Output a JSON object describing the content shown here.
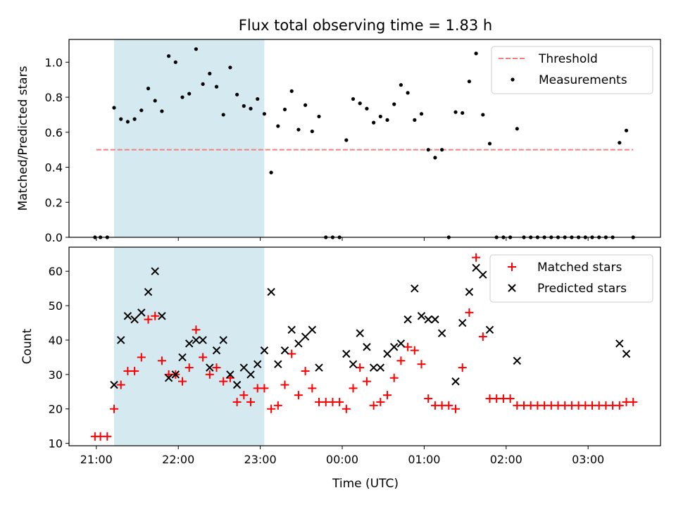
{
  "figure": {
    "title": "Flux total observing time = 1.83 h",
    "xlabel": "Time (UTC)"
  },
  "chart_data": [
    {
      "type": "scatter",
      "ylabel": "Matched/Predicted stars",
      "ylim": [
        0,
        1.13
      ],
      "xlim": [
        "20:40",
        "23:58+03:53"
      ],
      "y_ticks": [
        "0.0",
        "0.2",
        "0.4",
        "0.6",
        "0.8",
        "1.0"
      ],
      "shaded_region": {
        "from": "21:13",
        "to": "23:03",
        "color": "#d4eaf0"
      },
      "legend": {
        "placement": "top-right",
        "entries": [
          {
            "label": "Threshold",
            "marker": "dashed-line",
            "color": "#f08080"
          },
          {
            "label": "Measurements",
            "marker": "dot",
            "color": "#000000"
          }
        ]
      },
      "series": [
        {
          "name": "Threshold",
          "kind": "hline",
          "y": 0.5,
          "x_range": [
            "21:00",
            "03:33"
          ],
          "color": "#f08080"
        },
        {
          "name": "Measurements",
          "kind": "points",
          "color": "#000000",
          "points": [
            [
              "20:59",
              0
            ],
            [
              "21:03",
              0
            ],
            [
              "21:08",
              0
            ],
            [
              "21:13",
              0.74
            ],
            [
              "21:18",
              0.675
            ],
            [
              "21:23",
              0.66
            ],
            [
              "21:28",
              0.675
            ],
            [
              "21:33",
              0.725
            ],
            [
              "21:38",
              0.85
            ],
            [
              "21:43",
              0.78
            ],
            [
              "21:48",
              0.72
            ],
            [
              "21:53",
              1.035
            ],
            [
              "21:58",
              1.0
            ],
            [
              "22:03",
              0.8
            ],
            [
              "22:08",
              0.82
            ],
            [
              "22:13",
              1.075
            ],
            [
              "22:18",
              0.875
            ],
            [
              "22:23",
              0.935
            ],
            [
              "22:28",
              0.86
            ],
            [
              "22:33",
              0.7
            ],
            [
              "22:38",
              0.97
            ],
            [
              "22:43",
              0.815
            ],
            [
              "22:48",
              0.75
            ],
            [
              "22:53",
              0.735
            ],
            [
              "22:58",
              0.79
            ],
            [
              "23:03",
              0.705
            ],
            [
              "23:08",
              0.37
            ],
            [
              "23:13",
              0.635
            ],
            [
              "23:18",
              0.73
            ],
            [
              "23:23",
              0.835
            ],
            [
              "23:28",
              0.615
            ],
            [
              "23:33",
              0.755
            ],
            [
              "23:38",
              0.605
            ],
            [
              "23:43",
              0.69
            ],
            [
              "23:48",
              0
            ],
            [
              "23:53",
              0
            ],
            [
              "23:58",
              0
            ],
            [
              "00:03",
              0.555
            ],
            [
              "00:08",
              0.79
            ],
            [
              "00:13",
              0.765
            ],
            [
              "00:18",
              0.735
            ],
            [
              "00:23",
              0.655
            ],
            [
              "00:28",
              0.69
            ],
            [
              "00:33",
              0.67
            ],
            [
              "00:38",
              0.76
            ],
            [
              "00:43",
              0.87
            ],
            [
              "00:48",
              0.825
            ],
            [
              "00:53",
              0.67
            ],
            [
              "00:58",
              0.705
            ],
            [
              "01:03",
              0.5
            ],
            [
              "01:08",
              0.455
            ],
            [
              "01:13",
              0.5
            ],
            [
              "01:18",
              0
            ],
            [
              "01:23",
              0.715
            ],
            [
              "01:28",
              0.71
            ],
            [
              "01:33",
              0.89
            ],
            [
              "01:38",
              1.05
            ],
            [
              "01:43",
              0.7
            ],
            [
              "01:48",
              0.535
            ],
            [
              "01:53",
              0
            ],
            [
              "01:58",
              0
            ],
            [
              "02:03",
              0
            ],
            [
              "02:08",
              0.62
            ],
            [
              "02:13",
              0
            ],
            [
              "02:18",
              0
            ],
            [
              "02:23",
              0
            ],
            [
              "02:28",
              0
            ],
            [
              "02:33",
              0
            ],
            [
              "02:38",
              0
            ],
            [
              "02:43",
              0
            ],
            [
              "02:48",
              0
            ],
            [
              "02:53",
              0
            ],
            [
              "02:58",
              0
            ],
            [
              "03:03",
              0
            ],
            [
              "03:08",
              0
            ],
            [
              "03:13",
              0
            ],
            [
              "03:18",
              0
            ],
            [
              "03:23",
              0.54
            ],
            [
              "03:28",
              0.61
            ],
            [
              "03:33",
              0
            ]
          ]
        }
      ]
    },
    {
      "type": "scatter",
      "ylabel": "Count",
      "ylim": [
        9.3,
        67
      ],
      "y_ticks": [
        "10",
        "20",
        "30",
        "40",
        "50",
        "60"
      ],
      "x_ticks": [
        "21:00",
        "22:00",
        "23:00",
        "00:00",
        "01:00",
        "02:00",
        "03:00"
      ],
      "shaded_region": {
        "from": "21:13",
        "to": "23:03",
        "color": "#d4eaf0"
      },
      "legend": {
        "placement": "top-right",
        "entries": [
          {
            "label": "Matched stars",
            "marker": "plus",
            "color": "#ff0000"
          },
          {
            "label": "Predicted stars",
            "marker": "x",
            "color": "#000000"
          }
        ]
      },
      "series": [
        {
          "name": "Matched stars",
          "kind": "points",
          "marker": "plus",
          "color": "#ff0000",
          "points": [
            [
              "20:59",
              12
            ],
            [
              "21:03",
              12
            ],
            [
              "21:08",
              12
            ],
            [
              "21:13",
              20
            ],
            [
              "21:18",
              27
            ],
            [
              "21:23",
              31
            ],
            [
              "21:28",
              31
            ],
            [
              "21:33",
              35
            ],
            [
              "21:38",
              46
            ],
            [
              "21:43",
              47
            ],
            [
              "21:48",
              34
            ],
            [
              "21:53",
              30
            ],
            [
              "21:58",
              30
            ],
            [
              "22:03",
              28
            ],
            [
              "22:08",
              32
            ],
            [
              "22:13",
              43
            ],
            [
              "22:18",
              35
            ],
            [
              "22:23",
              30
            ],
            [
              "22:28",
              32
            ],
            [
              "22:33",
              28
            ],
            [
              "22:38",
              29
            ],
            [
              "22:43",
              22
            ],
            [
              "22:48",
              24
            ],
            [
              "22:53",
              22
            ],
            [
              "22:58",
              26
            ],
            [
              "23:03",
              26
            ],
            [
              "23:08",
              20
            ],
            [
              "23:13",
              21
            ],
            [
              "23:18",
              27
            ],
            [
              "23:23",
              36
            ],
            [
              "23:28",
              24
            ],
            [
              "23:33",
              31
            ],
            [
              "23:38",
              26
            ],
            [
              "23:43",
              22
            ],
            [
              "23:48",
              22
            ],
            [
              "23:53",
              22
            ],
            [
              "23:58",
              22
            ],
            [
              "00:03",
              20
            ],
            [
              "00:08",
              26
            ],
            [
              "00:13",
              32
            ],
            [
              "00:18",
              28
            ],
            [
              "00:23",
              21
            ],
            [
              "00:28",
              22
            ],
            [
              "00:33",
              24
            ],
            [
              "00:38",
              29
            ],
            [
              "00:43",
              34
            ],
            [
              "00:48",
              38
            ],
            [
              "00:53",
              37
            ],
            [
              "00:58",
              33
            ],
            [
              "01:03",
              23
            ],
            [
              "01:08",
              21
            ],
            [
              "01:13",
              21
            ],
            [
              "01:18",
              21
            ],
            [
              "01:23",
              20
            ],
            [
              "01:28",
              32
            ],
            [
              "01:33",
              48
            ],
            [
              "01:38",
              64
            ],
            [
              "01:43",
              41
            ],
            [
              "01:48",
              23
            ],
            [
              "01:53",
              23
            ],
            [
              "01:58",
              23
            ],
            [
              "02:03",
              23
            ],
            [
              "02:08",
              21
            ],
            [
              "02:13",
              21
            ],
            [
              "02:18",
              21
            ],
            [
              "02:23",
              21
            ],
            [
              "02:28",
              21
            ],
            [
              "02:33",
              21
            ],
            [
              "02:38",
              21
            ],
            [
              "02:43",
              21
            ],
            [
              "02:48",
              21
            ],
            [
              "02:53",
              21
            ],
            [
              "02:58",
              21
            ],
            [
              "03:03",
              21
            ],
            [
              "03:08",
              21
            ],
            [
              "03:13",
              21
            ],
            [
              "03:18",
              21
            ],
            [
              "03:23",
              21
            ],
            [
              "03:28",
              22
            ],
            [
              "03:33",
              22
            ]
          ]
        },
        {
          "name": "Predicted stars",
          "kind": "points",
          "marker": "x",
          "color": "#000000",
          "points": [
            [
              "21:13",
              27
            ],
            [
              "21:18",
              40
            ],
            [
              "21:23",
              47
            ],
            [
              "21:28",
              46
            ],
            [
              "21:33",
              48
            ],
            [
              "21:38",
              54
            ],
            [
              "21:43",
              60
            ],
            [
              "21:48",
              47
            ],
            [
              "21:53",
              29
            ],
            [
              "21:58",
              30
            ],
            [
              "22:03",
              35
            ],
            [
              "22:08",
              39
            ],
            [
              "22:13",
              40
            ],
            [
              "22:18",
              40
            ],
            [
              "22:23",
              32
            ],
            [
              "22:28",
              37
            ],
            [
              "22:33",
              40
            ],
            [
              "22:38",
              30
            ],
            [
              "22:43",
              27
            ],
            [
              "22:48",
              32
            ],
            [
              "22:53",
              30
            ],
            [
              "22:58",
              33
            ],
            [
              "23:03",
              37
            ],
            [
              "23:08",
              54
            ],
            [
              "23:13",
              33
            ],
            [
              "23:18",
              37
            ],
            [
              "23:23",
              43
            ],
            [
              "23:28",
              39
            ],
            [
              "23:33",
              41
            ],
            [
              "23:38",
              43
            ],
            [
              "23:43",
              32
            ],
            [
              "00:03",
              36
            ],
            [
              "00:08",
              33
            ],
            [
              "00:13",
              42
            ],
            [
              "00:18",
              38
            ],
            [
              "00:23",
              32
            ],
            [
              "00:28",
              32
            ],
            [
              "00:33",
              36
            ],
            [
              "00:38",
              38
            ],
            [
              "00:43",
              39
            ],
            [
              "00:48",
              46
            ],
            [
              "00:53",
              55
            ],
            [
              "00:58",
              47
            ],
            [
              "01:03",
              46
            ],
            [
              "01:08",
              46
            ],
            [
              "01:13",
              42
            ],
            [
              "01:23",
              28
            ],
            [
              "01:28",
              45
            ],
            [
              "01:33",
              54
            ],
            [
              "01:38",
              61
            ],
            [
              "01:43",
              59
            ],
            [
              "01:48",
              43
            ],
            [
              "02:08",
              34
            ],
            [
              "03:23",
              39
            ],
            [
              "03:28",
              36
            ]
          ]
        }
      ]
    }
  ]
}
